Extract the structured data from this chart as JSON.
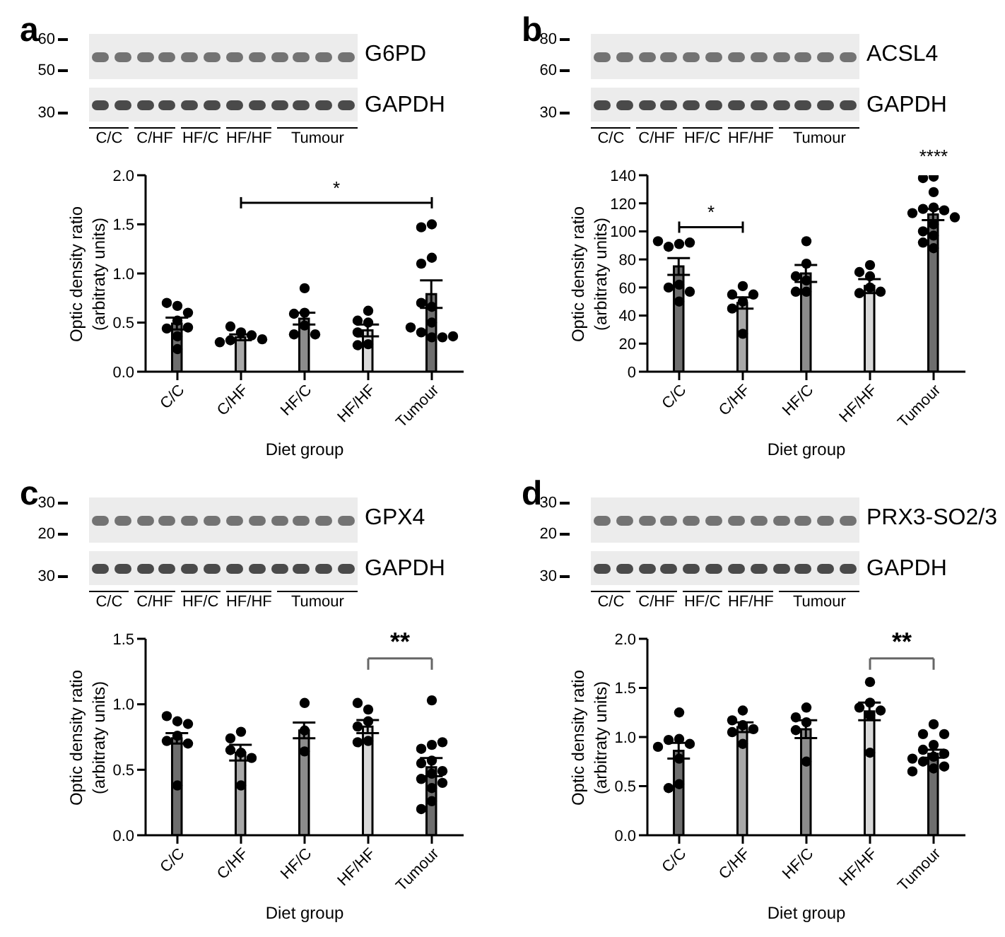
{
  "chart_data": [
    {
      "type": "bar",
      "title": "a",
      "xlabel": "Diet group",
      "ylabel": "Optic density ratio (arbitraty units)",
      "categories": [
        "C/C",
        "C/HF",
        "HF/C",
        "HF/HF",
        "Tumour"
      ],
      "ylim": [
        0,
        2
      ],
      "yticks": [
        {
          "value": 0,
          "label": "0.0"
        },
        {
          "value": 0.5,
          "label": "0.5"
        },
        {
          "value": 1,
          "label": "1.0"
        },
        {
          "value": 1.5,
          "label": "1.5"
        },
        {
          "value": 2,
          "label": "2.0"
        }
      ],
      "annotations": [
        "G6PD",
        "GAPDH",
        "60",
        "50",
        "30",
        "C/C",
        "C/HF",
        "HF/C",
        "HF/HF",
        "Tumour",
        "*"
      ],
      "series": [
        {
          "colors": [
            "#6e6e6e",
            "#a8a8a8",
            "#8c8c8c",
            "#d9d9d9",
            "#6e6e6e"
          ],
          "values": [
            0.49,
            0.35,
            0.54,
            0.42,
            0.79
          ],
          "errors": [
            0.06,
            0.03,
            0.06,
            0.06,
            0.14
          ]
        },
        {
          "type": "scatter",
          "color": "#000000",
          "marker": "circle",
          "x": [
            "C/C",
            "C/C",
            "C/C",
            "C/C",
            "C/C",
            "C/C",
            "C/C",
            "C/C",
            "C/HF",
            "C/HF",
            "C/HF",
            "C/HF",
            "C/HF",
            "C/HF",
            "HF/C",
            "HF/C",
            "HF/C",
            "HF/C",
            "HF/C",
            "HF/C",
            "HF/HF",
            "HF/HF",
            "HF/HF",
            "HF/HF",
            "HF/HF",
            "HF/HF",
            "Tumour",
            "Tumour",
            "Tumour",
            "Tumour",
            "Tumour",
            "Tumour",
            "Tumour",
            "Tumour",
            "Tumour",
            "Tumour",
            "Tumour",
            "Tumour"
          ],
          "values": [
            0.67,
            0.7,
            0.6,
            0.52,
            0.44,
            0.36,
            0.23,
            0.45,
            0.4,
            0.46,
            0.37,
            0.32,
            0.3,
            0.33,
            0.85,
            0.6,
            0.59,
            0.47,
            0.38,
            0.38,
            0.62,
            0.52,
            0.5,
            0.4,
            0.28,
            0.27,
            1.5,
            1.47,
            1.16,
            1.1,
            0.66,
            0.5,
            0.4,
            0.35,
            0.35,
            0.45,
            0.36,
            0.7
          ]
        }
      ]
    },
    {
      "type": "bar",
      "title": "b",
      "xlabel": "Diet group",
      "ylabel": "Optic density ratio (arbitraty units)",
      "categories": [
        "C/C",
        "C/HF",
        "HF/C",
        "HF/HF",
        "Tumour"
      ],
      "ylim": [
        0,
        140
      ],
      "yticks": [
        0,
        20,
        40,
        60,
        80,
        100,
        120,
        140
      ],
      "annotations": [
        "ACSL4",
        "GAPDH",
        "80",
        "60",
        "30",
        "C/C",
        "C/HF",
        "HF/C",
        "HF/HF",
        "Tumour",
        "*",
        "****"
      ],
      "series": [
        {
          "colors": [
            "#6e6e6e",
            "#a8a8a8",
            "#8c8c8c",
            "#d9d9d9",
            "#6e6e6e"
          ],
          "values": [
            75,
            49,
            70,
            61,
            112
          ],
          "errors": [
            6,
            4,
            6,
            5,
            4
          ]
        },
        {
          "type": "scatter",
          "color": "#000000",
          "marker": "circle",
          "x": [
            "C/C",
            "C/C",
            "C/C",
            "C/C",
            "C/C",
            "C/C",
            "C/C",
            "C/C",
            "C/HF",
            "C/HF",
            "C/HF",
            "C/HF",
            "C/HF",
            "C/HF",
            "HF/C",
            "HF/C",
            "HF/C",
            "HF/C",
            "HF/C",
            "HF/C",
            "HF/HF",
            "HF/HF",
            "HF/HF",
            "HF/HF",
            "HF/HF",
            "HF/HF",
            "Tumour",
            "Tumour",
            "Tumour",
            "Tumour",
            "Tumour",
            "Tumour",
            "Tumour",
            "Tumour",
            "Tumour",
            "Tumour",
            "Tumour",
            "Tumour",
            "Tumour"
          ],
          "values": [
            91,
            89,
            92,
            93,
            62,
            60,
            57,
            50,
            61,
            55,
            55,
            50,
            45,
            27,
            93,
            77,
            65,
            57,
            57,
            68,
            76,
            68,
            71,
            60,
            56,
            57,
            139,
            138,
            128,
            117,
            116,
            115,
            113,
            110,
            105,
            100,
            97,
            92,
            88
          ]
        }
      ]
    },
    {
      "type": "bar",
      "title": "c",
      "xlabel": "Diet group",
      "ylabel": "Optic density ratio (arbitraty units)",
      "categories": [
        "C/C",
        "C/HF",
        "HF/C",
        "HF/HF",
        "Tumour"
      ],
      "ylim": [
        0,
        1.5
      ],
      "yticks": [
        {
          "value": 0,
          "label": "0.0"
        },
        {
          "value": 0.5,
          "label": "0.5"
        },
        {
          "value": 1,
          "label": "1.0"
        },
        {
          "value": 1.5,
          "label": "1.5"
        }
      ],
      "annotations": [
        "GPX4",
        "GAPDH",
        "30",
        "20",
        "30",
        "C/C",
        "C/HF",
        "HF/C",
        "HF/HF",
        "Tumour",
        "**"
      ],
      "series": [
        {
          "colors": [
            "#6e6e6e",
            "#a8a8a8",
            "#8c8c8c",
            "#d9d9d9",
            "#6e6e6e"
          ],
          "values": [
            0.74,
            0.63,
            0.8,
            0.83,
            0.52
          ],
          "errors": [
            0.04,
            0.06,
            0.06,
            0.05,
            0.07
          ]
        },
        {
          "type": "scatter",
          "color": "#000000",
          "marker": "circle",
          "x": [
            "C/C",
            "C/C",
            "C/C",
            "C/C",
            "C/C",
            "C/C",
            "C/C",
            "C/HF",
            "C/HF",
            "C/HF",
            "C/HF",
            "C/HF",
            "C/HF",
            "HF/C",
            "HF/C",
            "HF/C",
            "HF/HF",
            "HF/HF",
            "HF/HF",
            "HF/HF",
            "HF/HF",
            "HF/HF",
            "Tumour",
            "Tumour",
            "Tumour",
            "Tumour",
            "Tumour",
            "Tumour",
            "Tumour",
            "Tumour",
            "Tumour",
            "Tumour",
            "Tumour",
            "Tumour",
            "Tumour"
          ],
          "values": [
            0.87,
            0.91,
            0.85,
            0.76,
            0.72,
            0.7,
            0.38,
            0.79,
            0.74,
            0.63,
            0.65,
            0.59,
            0.38,
            1.01,
            0.8,
            0.64,
            0.96,
            1.01,
            0.87,
            0.83,
            0.72,
            0.71,
            1.03,
            0.69,
            0.66,
            0.71,
            0.57,
            0.55,
            0.49,
            0.47,
            0.43,
            0.4,
            0.36,
            0.26,
            0.2
          ]
        }
      ]
    },
    {
      "type": "bar",
      "title": "d",
      "xlabel": "Diet group",
      "ylabel": "Optic density ratio (arbitraty units)",
      "categories": [
        "C/C",
        "C/HF",
        "HF/C",
        "HF/HF",
        "Tumour"
      ],
      "ylim": [
        0,
        2
      ],
      "yticks": [
        {
          "value": 0,
          "label": "0.0"
        },
        {
          "value": 0.5,
          "label": "0.5"
        },
        {
          "value": 1,
          "label": "1.0"
        },
        {
          "value": 1.5,
          "label": "1.5"
        },
        {
          "value": 2,
          "label": "2.0"
        }
      ],
      "annotations": [
        "PRX3-SO2/3",
        "GAPDH",
        "30",
        "20",
        "30",
        "C/C",
        "C/HF",
        "HF/C",
        "HF/HF",
        "Tumour",
        "**"
      ],
      "series": [
        {
          "colors": [
            "#6e6e6e",
            "#a8a8a8",
            "#8c8c8c",
            "#d9d9d9",
            "#6e6e6e"
          ],
          "values": [
            0.86,
            1.1,
            1.08,
            1.26,
            0.83
          ],
          "errors": [
            0.08,
            0.05,
            0.09,
            0.09,
            0.04
          ]
        },
        {
          "type": "scatter",
          "color": "#000000",
          "marker": "circle",
          "x": [
            "C/C",
            "C/C",
            "C/C",
            "C/C",
            "C/C",
            "C/C",
            "C/C",
            "C/C",
            "C/HF",
            "C/HF",
            "C/HF",
            "C/HF",
            "C/HF",
            "C/HF",
            "HF/C",
            "HF/C",
            "HF/C",
            "HF/C",
            "HF/C",
            "HF/HF",
            "HF/HF",
            "HF/HF",
            "HF/HF",
            "HF/HF",
            "HF/HF",
            "Tumour",
            "Tumour",
            "Tumour",
            "Tumour",
            "Tumour",
            "Tumour",
            "Tumour",
            "Tumour",
            "Tumour",
            "Tumour",
            "Tumour",
            "Tumour"
          ],
          "values": [
            1.25,
            0.98,
            0.97,
            0.93,
            0.9,
            0.78,
            0.52,
            0.48,
            1.27,
            1.17,
            1.12,
            1.08,
            1.05,
            0.93,
            1.3,
            1.2,
            1.15,
            1.07,
            0.75,
            1.56,
            1.35,
            1.3,
            1.22,
            1.27,
            0.84,
            1.13,
            1.03,
            1.03,
            0.92,
            0.87,
            0.83,
            0.8,
            0.78,
            0.75,
            0.7,
            0.68,
            0.65
          ]
        }
      ]
    }
  ]
}
